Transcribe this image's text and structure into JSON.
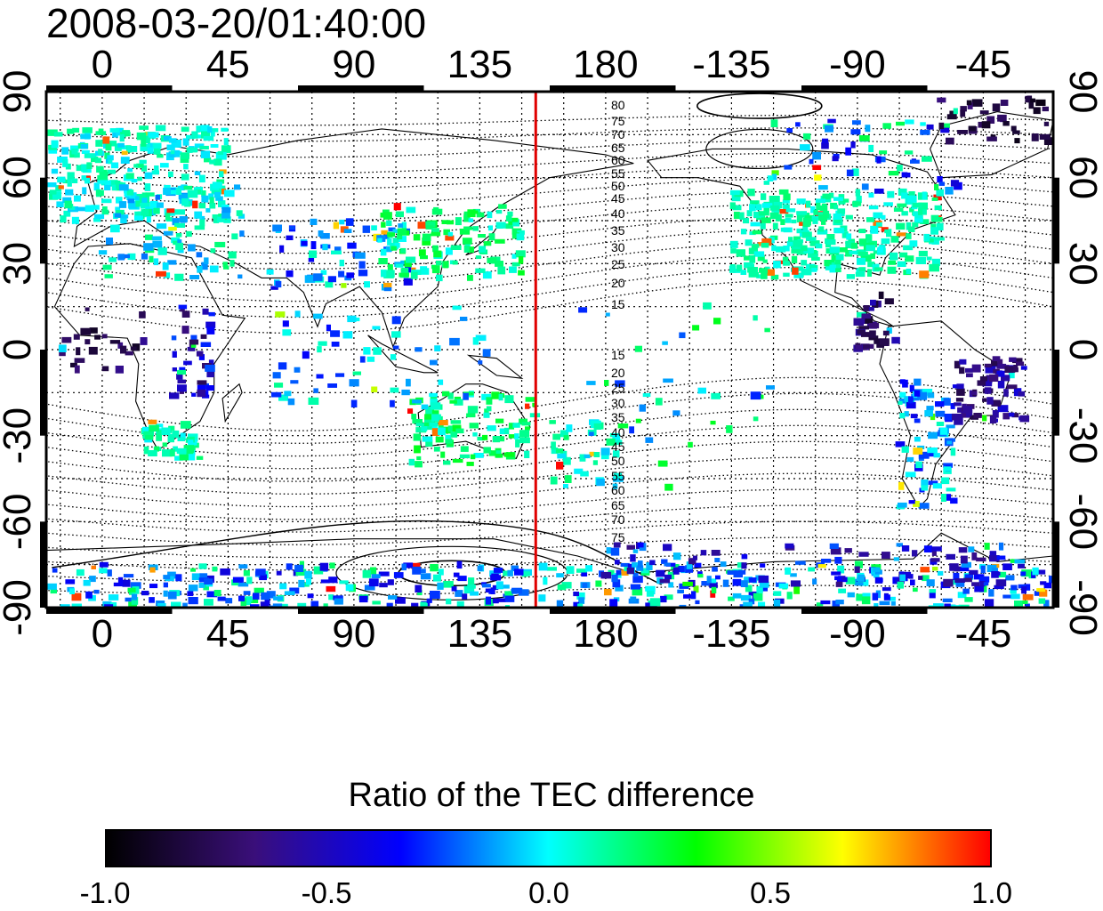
{
  "title": "2008-03-20/01:40:00",
  "map": {
    "lon_ticks": [
      "0",
      "45",
      "90",
      "135",
      "180",
      "-135",
      "-90",
      "-45"
    ],
    "lat_ticks": [
      "90",
      "60",
      "30",
      "0",
      "-30",
      "-60",
      "-90"
    ],
    "right_lat_ticks": [
      "90",
      "60",
      "30",
      "0",
      "-30",
      "-60",
      "-90"
    ],
    "lon_range": [
      -20,
      340
    ],
    "lat_range": [
      -90,
      90
    ],
    "grid": true,
    "marker_line_lon": 155,
    "marker_line_color": "#e00000",
    "north_contour_labels": [
      "80",
      "75",
      "70",
      "65",
      "60",
      "55",
      "50",
      "45",
      "40",
      "35",
      "30",
      "25",
      "20",
      "15"
    ],
    "south_contour_labels": [
      "15",
      "20",
      "25",
      "30",
      "35",
      "40",
      "45",
      "50",
      "55",
      "60",
      "65",
      "70",
      "75"
    ]
  },
  "colorbar": {
    "title": "Ratio of the TEC difference",
    "ticks": [
      "-1.0",
      "-0.5",
      "0.0",
      "0.5",
      "1.0"
    ],
    "range": [
      -1.0,
      1.0
    ],
    "colors": [
      "#000000",
      "#3a0f7a",
      "#0000ff",
      "#00ffff",
      "#00ff00",
      "#ffff00",
      "#ff0000"
    ]
  }
}
